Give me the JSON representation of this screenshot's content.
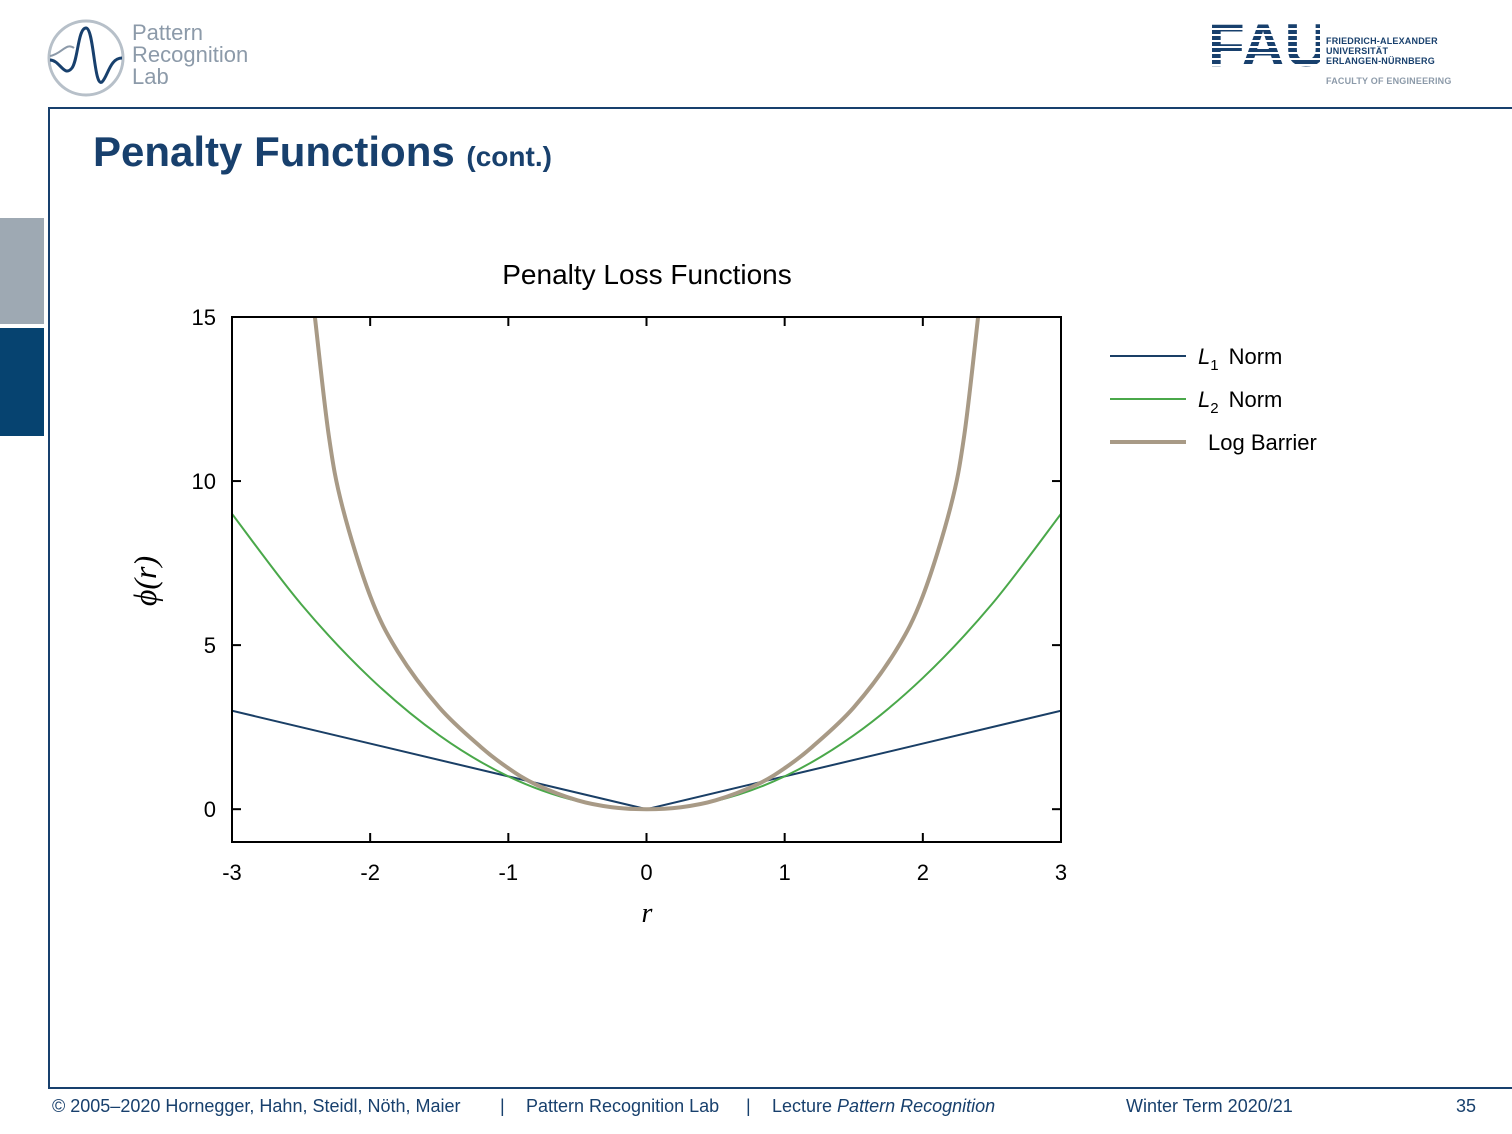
{
  "header": {
    "lab_logo_text": [
      "Pattern",
      "Recognition",
      "Lab"
    ],
    "university_logo": {
      "mark": "FAU",
      "name_lines": [
        "FRIEDRICH-ALEXANDER",
        "UNIVERSITÄT",
        "ERLANGEN-NÜRNBERG"
      ],
      "faculty": "FACULTY OF ENGINEERING"
    }
  },
  "slide": {
    "title": "Penalty Functions",
    "title_suffix": "(cont.)"
  },
  "chart_data": {
    "type": "line",
    "title": "Penalty Loss Functions",
    "xlabel": "r",
    "ylabel": "ϕ(r)",
    "xlim": [
      -3,
      3
    ],
    "ylim": [
      -1,
      15
    ],
    "xticks": [
      -3,
      -2,
      -1,
      0,
      1,
      2,
      3
    ],
    "yticks": [
      0,
      5,
      10,
      15
    ],
    "legend_position": "right-outside-top",
    "series": [
      {
        "name": "L1 Norm",
        "color": "#1a3f66",
        "x": [
          -3,
          -2,
          -1,
          0,
          1,
          2,
          3
        ],
        "y": [
          3,
          2,
          1,
          0,
          1,
          2,
          3
        ]
      },
      {
        "name": "L2 Norm",
        "color": "#4aa84a",
        "x": [
          -3,
          -2.5,
          -2,
          -1.5,
          -1,
          -0.5,
          0,
          0.5,
          1,
          1.5,
          2,
          2.5,
          3
        ],
        "y": [
          9,
          6.25,
          4,
          2.25,
          1,
          0.25,
          0,
          0.25,
          1,
          2.25,
          4,
          6.25,
          9
        ]
      },
      {
        "name": "Log Barrier",
        "color": "#a89a86",
        "x": [
          -2.4,
          -2.3,
          -2.2,
          -2.0,
          -1.8,
          -1.5,
          -1.2,
          -1.0,
          -0.8,
          -0.5,
          -0.25,
          0,
          0.25,
          0.5,
          0.8,
          1.0,
          1.2,
          1.5,
          1.8,
          2.0,
          2.2,
          2.3,
          2.4
        ],
        "y": [
          15.0,
          11.4,
          9.2,
          6.5,
          4.8,
          3.1,
          1.9,
          1.25,
          0.75,
          0.27,
          0.06,
          0,
          0.06,
          0.27,
          0.75,
          1.25,
          1.9,
          3.1,
          4.8,
          6.5,
          9.2,
          11.4,
          15.0
        ]
      }
    ]
  },
  "legend": [
    {
      "symbol": "L",
      "sub": "1",
      "text": "Norm"
    },
    {
      "symbol": "L",
      "sub": "2",
      "text": "Norm"
    },
    {
      "symbol": "",
      "sub": "",
      "text": "Log Barrier"
    }
  ],
  "footer": {
    "copyright": "© 2005–2020 Hornegger, Hahn, Steidl, Nöth, Maier",
    "lab": "Pattern Recognition Lab",
    "lecture_prefix": "Lecture ",
    "lecture_name": "Pattern Recognition",
    "term": "Winter Term 2020/21",
    "page": "35",
    "separator": "|"
  }
}
